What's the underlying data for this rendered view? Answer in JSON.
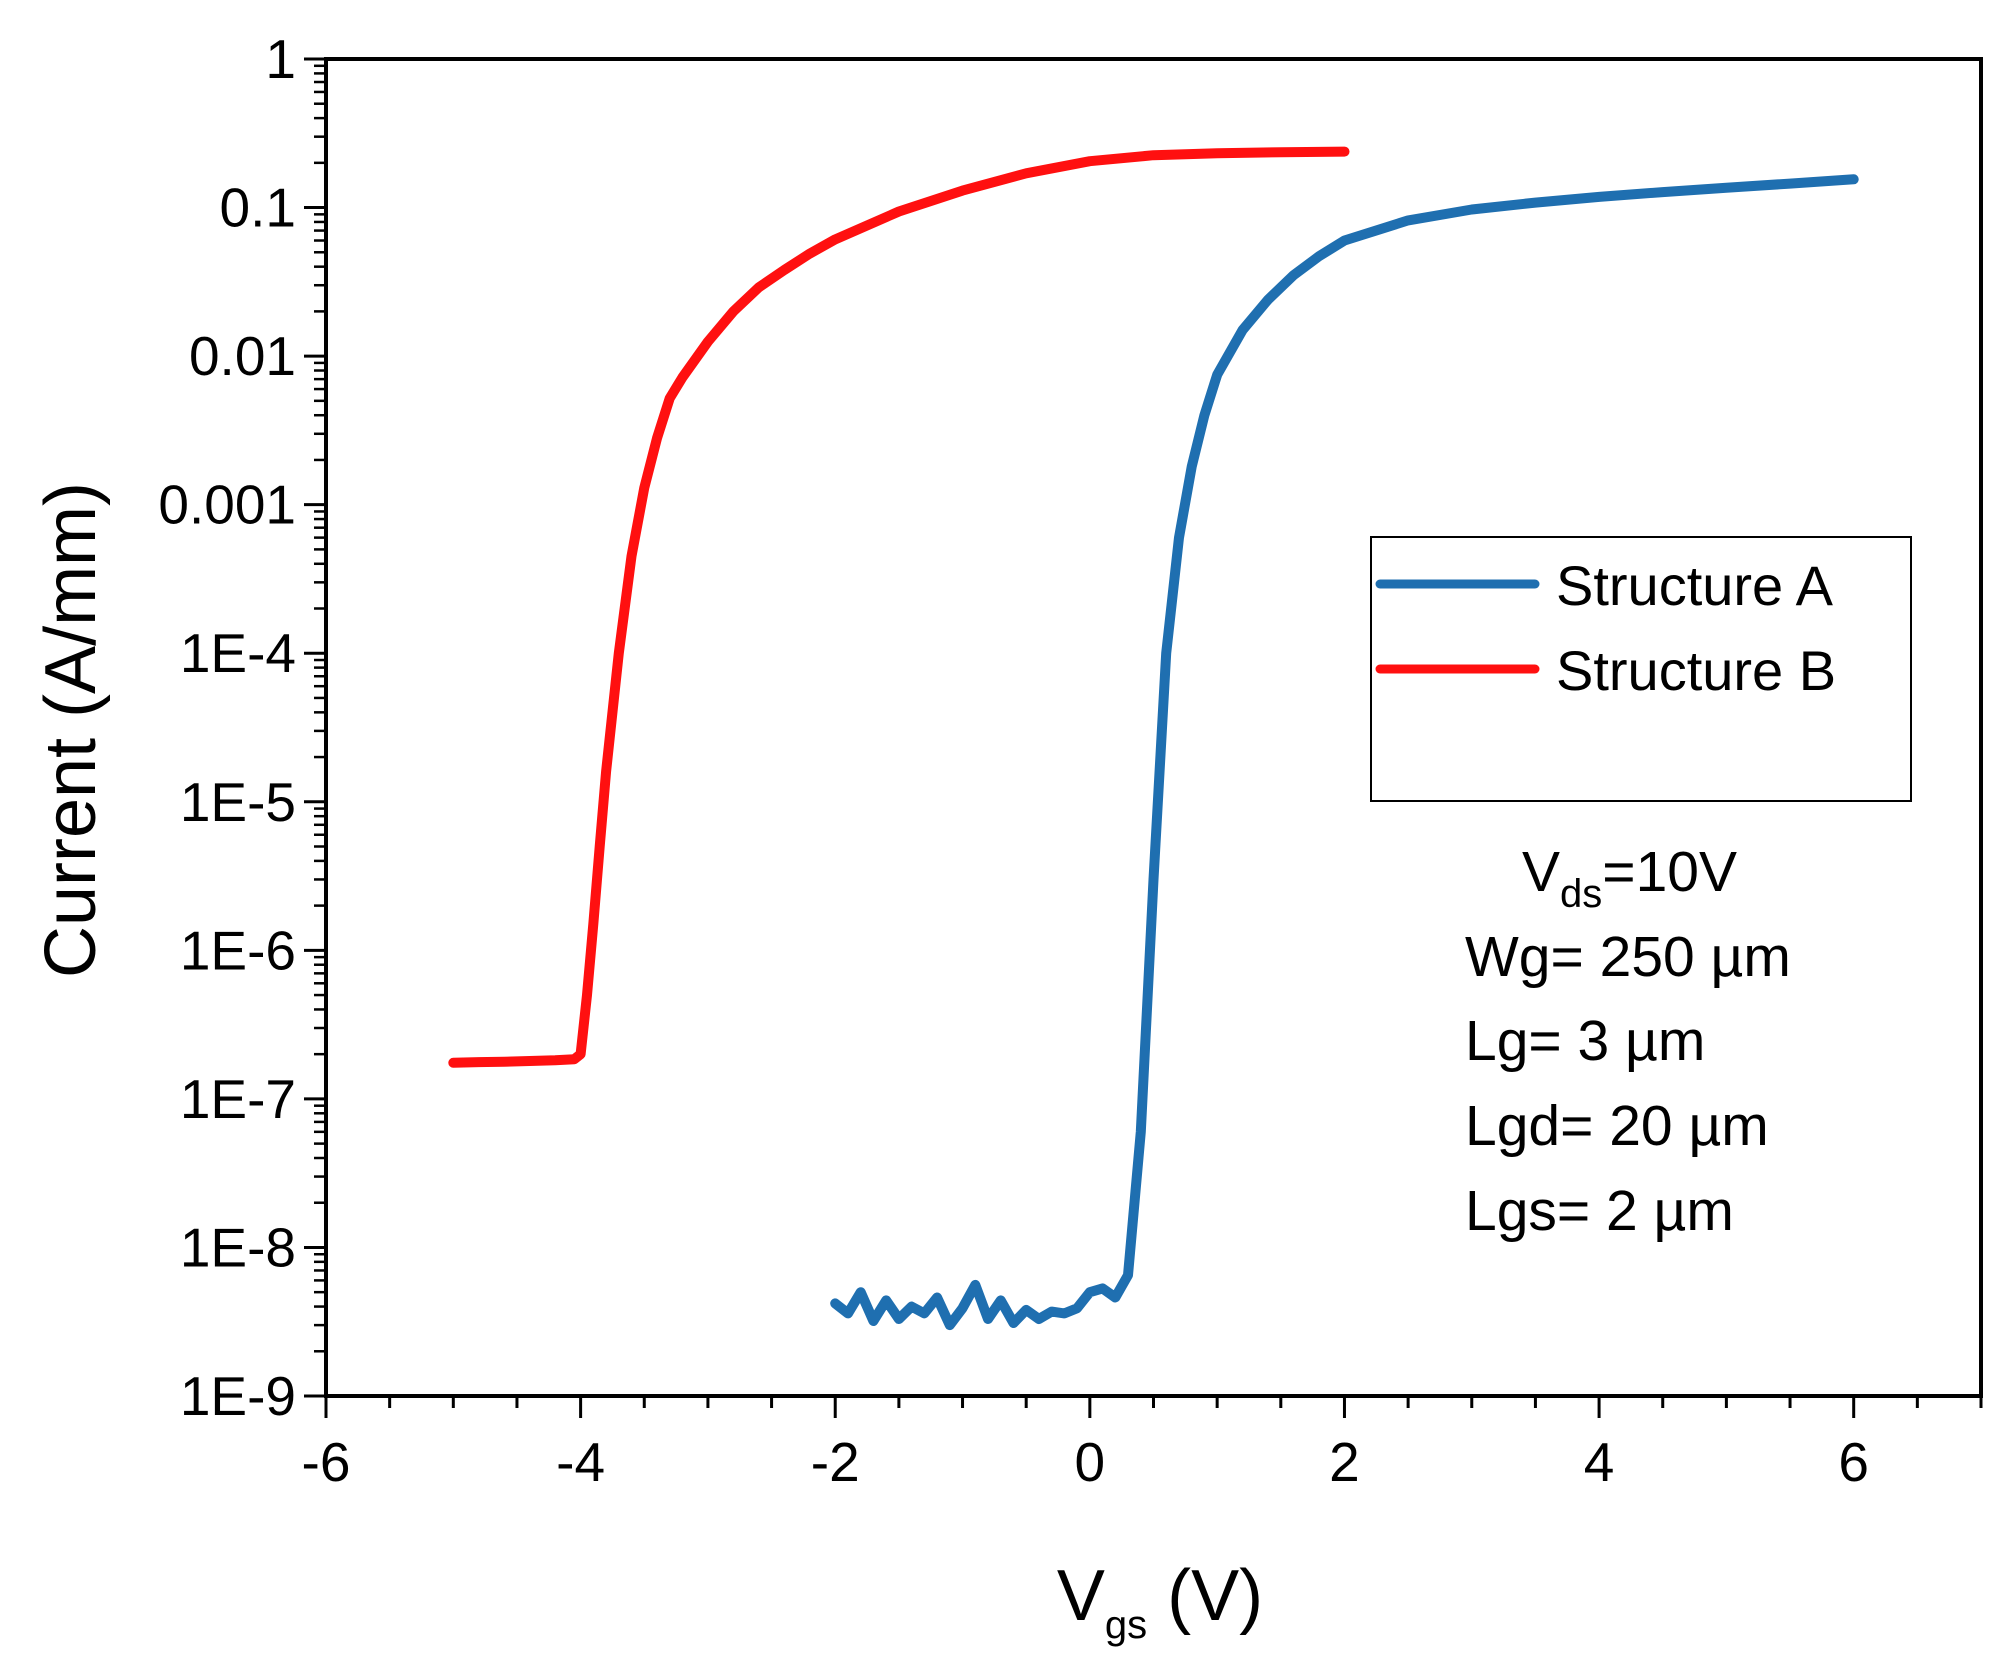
{
  "chart_data": {
    "type": "line",
    "title": "",
    "xlabel": {
      "main": "V",
      "sub": "gs",
      "suffix": " (V)"
    },
    "ylabel": "Current (A/mm)",
    "xlim": [
      -6,
      7
    ],
    "ylim": [
      1e-09,
      1
    ],
    "yscale": "log",
    "xticks": [
      {
        "value": -6,
        "label": "-6"
      },
      {
        "value": -4,
        "label": "-4"
      },
      {
        "value": -2,
        "label": "-2"
      },
      {
        "value": 0,
        "label": "0"
      },
      {
        "value": 2,
        "label": "2"
      },
      {
        "value": 4,
        "label": "4"
      },
      {
        "value": 6,
        "label": "6"
      }
    ],
    "yticks": [
      {
        "value": 1,
        "label": "1"
      },
      {
        "value": 0.1,
        "label": "0.1"
      },
      {
        "value": 0.01,
        "label": "0.01"
      },
      {
        "value": 0.001,
        "label": "0.001"
      },
      {
        "value": 0.0001,
        "label": "1E-4"
      },
      {
        "value": 1e-05,
        "label": "1E-5"
      },
      {
        "value": 1e-06,
        "label": "1E-6"
      },
      {
        "value": 1e-07,
        "label": "1E-7"
      },
      {
        "value": 1e-08,
        "label": "1E-8"
      },
      {
        "value": 1e-09,
        "label": "1E-9"
      }
    ],
    "legend": {
      "position": "right-middle"
    },
    "series": [
      {
        "name": "Structure A",
        "color": "#1f6fb0",
        "x": [
          -2.0,
          -1.9,
          -1.8,
          -1.7,
          -1.6,
          -1.5,
          -1.4,
          -1.3,
          -1.2,
          -1.1,
          -1.0,
          -0.9,
          -0.8,
          -0.7,
          -0.6,
          -0.5,
          -0.4,
          -0.3,
          -0.2,
          -0.1,
          0.0,
          0.1,
          0.2,
          0.3,
          0.4,
          0.5,
          0.6,
          0.7,
          0.8,
          0.9,
          1.0,
          1.2,
          1.4,
          1.6,
          1.8,
          2.0,
          2.5,
          3.0,
          3.5,
          4.0,
          4.5,
          5.0,
          5.5,
          6.0
        ],
        "y": [
          4.2e-09,
          3.6e-09,
          5e-09,
          3.2e-09,
          4.4e-09,
          3.3e-09,
          4e-09,
          3.6e-09,
          4.6e-09,
          3e-09,
          3.9e-09,
          5.6e-09,
          3.3e-09,
          4.4e-09,
          3.1e-09,
          3.8e-09,
          3.3e-09,
          3.7e-09,
          3.6e-09,
          3.9e-09,
          5e-09,
          5.3e-09,
          4.6e-09,
          6.5e-09,
          6e-08,
          3e-06,
          0.0001,
          0.0006,
          0.0018,
          0.004,
          0.0075,
          0.015,
          0.024,
          0.035,
          0.047,
          0.06,
          0.082,
          0.097,
          0.108,
          0.118,
          0.127,
          0.136,
          0.145,
          0.155
        ]
      },
      {
        "name": "Structure B",
        "color": "#ff1010",
        "x": [
          -5.0,
          -4.8,
          -4.6,
          -4.4,
          -4.2,
          -4.05,
          -4.0,
          -3.95,
          -3.9,
          -3.85,
          -3.8,
          -3.7,
          -3.6,
          -3.5,
          -3.4,
          -3.3,
          -3.2,
          -3.0,
          -2.8,
          -2.6,
          -2.4,
          -2.2,
          -2.0,
          -1.5,
          -1.0,
          -0.5,
          0.0,
          0.5,
          1.0,
          1.5,
          2.0
        ],
        "y": [
          1.75e-07,
          1.77e-07,
          1.78e-07,
          1.8e-07,
          1.82e-07,
          1.85e-07,
          2e-07,
          5e-07,
          1.5e-06,
          5e-06,
          1.6e-05,
          0.0001,
          0.00045,
          0.0013,
          0.0028,
          0.0052,
          0.0072,
          0.0125,
          0.02,
          0.029,
          0.038,
          0.049,
          0.061,
          0.094,
          0.13,
          0.17,
          0.205,
          0.225,
          0.232,
          0.236,
          0.238
        ]
      }
    ],
    "annotation": {
      "vds": {
        "main": "V",
        "sub": "ds",
        "suffix": "=10V"
      },
      "lines": [
        "Wg= 250 µm",
        "Lg= 3 µm",
        "Lgd= 20 µm",
        "Lgs= 2 µm"
      ]
    }
  }
}
